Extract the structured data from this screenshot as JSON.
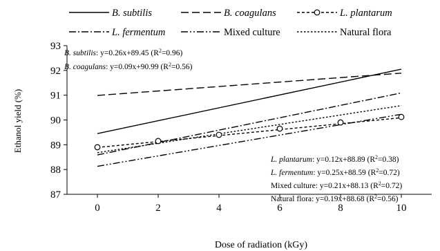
{
  "chart_data": {
    "type": "line",
    "xlabel": "Dose of radiation (kGy)",
    "ylabel": "Ethanol yield (%)",
    "xlim": [
      -1,
      11
    ],
    "ylim": [
      87,
      93
    ],
    "xticks": [
      0,
      2,
      4,
      6,
      8,
      10
    ],
    "yticks": [
      87,
      88,
      89,
      90,
      91,
      92,
      93
    ],
    "grid": false,
    "legend_placement": "top",
    "series": [
      {
        "name": "B. subtilis",
        "italic": true,
        "style": "solid",
        "slope": 0.26,
        "intercept": 89.45,
        "markers": false
      },
      {
        "name": "B. coagulans",
        "italic": true,
        "style": "long-dash",
        "slope": 0.09,
        "intercept": 90.99,
        "markers": false
      },
      {
        "name": "L. plantarum",
        "italic": true,
        "style": "short-dash",
        "slope": 0.12,
        "intercept": 88.89,
        "markers": true,
        "points": [
          {
            "x": 0,
            "y": 88.9
          },
          {
            "x": 2,
            "y": 89.15
          },
          {
            "x": 4,
            "y": 89.4
          },
          {
            "x": 6,
            "y": 89.65
          },
          {
            "x": 8,
            "y": 89.9
          },
          {
            "x": 10,
            "y": 90.12
          }
        ]
      },
      {
        "name": "L. fermentum",
        "italic": true,
        "style": "dash-dot",
        "slope": 0.25,
        "intercept": 88.59,
        "markers": false
      },
      {
        "name": "Mixed culture",
        "italic": false,
        "style": "dash-dot-dot",
        "slope": 0.21,
        "intercept": 88.13,
        "markers": false
      },
      {
        "name": "Natural flora",
        "italic": false,
        "style": "dotted",
        "slope": 0.19,
        "intercept": 88.68,
        "markers": false
      }
    ],
    "annotations": {
      "top": [
        {
          "name": "B. subtilis",
          "italic": true,
          "eq": ": y=0.26x+89.45 (R",
          "sup": "2",
          "end": "=0.96)"
        },
        {
          "name": "B. coagulans",
          "italic": true,
          "eq": ": y=0.09x+90.99 (R",
          "sup": "2",
          "end": "=0.56)"
        }
      ],
      "bottom": [
        {
          "name": "L. plantarum",
          "italic": true,
          "eq": ": y=0.12x+88.89 (R",
          "sup": "2",
          "end": "=0.38)"
        },
        {
          "name": "L. fermentum",
          "italic": true,
          "eq": ": y=0.25x+88.59 (R",
          "sup": "2",
          "end": "=0.72)"
        },
        {
          "name": "Mixed culture",
          "italic": false,
          "eq": ": y=0.21x+88.13 (R",
          "sup": "2",
          "end": "=0.72)"
        },
        {
          "name": "Natural flora",
          "italic": false,
          "eq": ": y=0.19x+88.68 (R",
          "sup": "2",
          "end": "=0.56)"
        }
      ]
    }
  }
}
